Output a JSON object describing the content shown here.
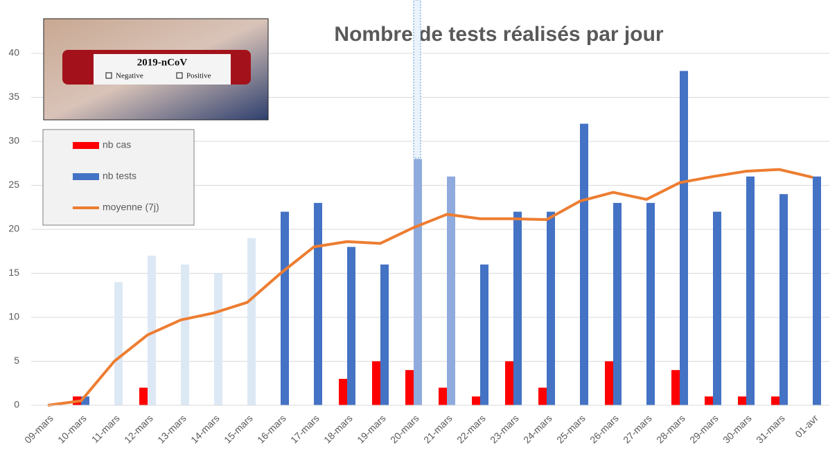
{
  "chart_data": {
    "type": "bar-line",
    "title": "Nombre de tests réalisés par jour",
    "categories": [
      "09-mars",
      "10-mars",
      "11-mars",
      "12-mars",
      "13-mars",
      "14-mars",
      "15-mars",
      "16-mars",
      "17-mars",
      "18-mars",
      "19-mars",
      "20-mars",
      "21-mars",
      "22-mars",
      "23-mars",
      "24-mars",
      "25-mars",
      "26-mars",
      "27-mars",
      "28-mars",
      "29-mars",
      "30-mars",
      "31-mars",
      "01-avr"
    ],
    "series": [
      {
        "name": "nb cas",
        "kind": "bar",
        "color": "#ff0000",
        "values": [
          0,
          1,
          0,
          2,
          0,
          0,
          0,
          0,
          0,
          3,
          5,
          4,
          2,
          1,
          5,
          2,
          0,
          5,
          0,
          4,
          1,
          1,
          1,
          0
        ]
      },
      {
        "name": "nb tests",
        "kind": "bar",
        "color": "#4472c4",
        "values": [
          0,
          1,
          14,
          17,
          16,
          15,
          19,
          22,
          23,
          18,
          16,
          28,
          26,
          16,
          22,
          22,
          32,
          23,
          23,
          38,
          22,
          26,
          24,
          26
        ],
        "colors": [
          "#4472c4",
          "#4472c4",
          "#dde8f5",
          "#dde8f5",
          "#dde8f5",
          "#dde8f5",
          "#dde8f5",
          "#4472c4",
          "#4472c4",
          "#4472c4",
          "#4472c4",
          "#8faadc",
          "#8faadc",
          "#4472c4",
          "#4472c4",
          "#4472c4",
          "#4472c4",
          "#4472c4",
          "#4472c4",
          "#4472c4",
          "#4472c4",
          "#4472c4",
          "#4472c4",
          "#4472c4"
        ]
      },
      {
        "name": "moyenne (7j)",
        "kind": "line",
        "color": "#ed7d31",
        "values": [
          0,
          0.5,
          5,
          8,
          9.7,
          10.5,
          11.7,
          15,
          18,
          18.6,
          18.4,
          20.2,
          21.7,
          21.2,
          21.2,
          21.1,
          23.2,
          24.2,
          23.4,
          25.3,
          26,
          26.6,
          26.8,
          25.9
        ]
      }
    ],
    "ylim": [
      0,
      40
    ],
    "yticks": [
      0,
      5,
      10,
      15,
      20,
      25,
      30,
      35,
      40
    ],
    "grid": true
  },
  "image": {
    "label": "2019-nCoV",
    "options": [
      "Negative",
      "Positive"
    ]
  }
}
